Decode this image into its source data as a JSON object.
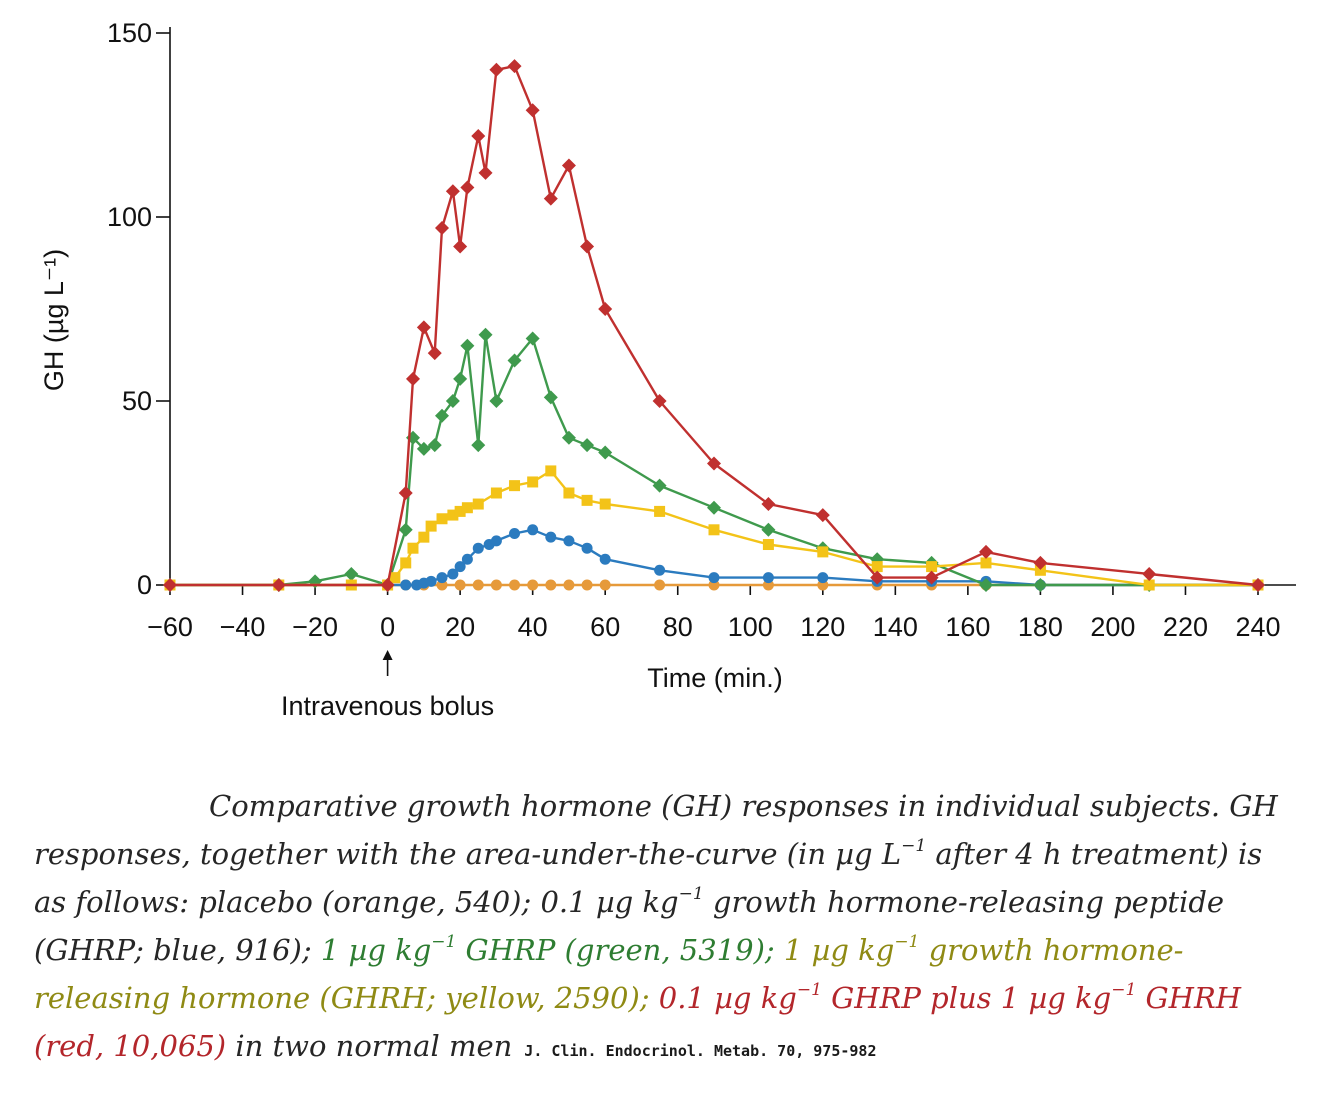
{
  "colors": {
    "red": "#c0302f",
    "green": "#3f9a4d",
    "yellow": "#f3c318",
    "blue": "#2b7bbf",
    "orange": "#e69a3a",
    "axis": "#111111"
  },
  "chart_data": {
    "type": "line",
    "title": "",
    "xlabel": "Time (min.)",
    "ylabel": "GH (µg L⁻¹)",
    "xlim": [
      -60,
      240
    ],
    "ylim": [
      0,
      150
    ],
    "x_ticks": [
      "−60",
      "−40",
      "−20",
      "0",
      "20",
      "40",
      "60",
      "80",
      "100",
      "120",
      "140",
      "160",
      "180",
      "200",
      "220",
      "240"
    ],
    "x_tick_values": [
      -60,
      -40,
      -20,
      0,
      20,
      40,
      60,
      80,
      100,
      120,
      140,
      160,
      180,
      200,
      220,
      240
    ],
    "y_ticks": [
      "0",
      "50",
      "100",
      "150"
    ],
    "y_tick_values": [
      0,
      50,
      100,
      150
    ],
    "grid": false,
    "legend": "none",
    "annotation": {
      "text": "Intravenous bolus",
      "x": 0
    },
    "series": [
      {
        "color": "orange",
        "marker": "circle",
        "x": [
          -60,
          -30,
          -10,
          0,
          5,
          10,
          15,
          20,
          25,
          30,
          35,
          40,
          45,
          50,
          55,
          60,
          75,
          90,
          105,
          120,
          135,
          150,
          165,
          180,
          210,
          240
        ],
        "y": [
          0,
          0,
          0,
          0,
          0,
          0,
          0,
          0,
          0,
          0,
          0,
          0,
          0,
          0,
          0,
          0,
          0,
          0,
          0,
          0,
          0,
          0,
          0,
          0,
          0,
          0
        ]
      },
      {
        "color": "blue",
        "marker": "circle",
        "x": [
          -60,
          -30,
          -10,
          0,
          5,
          8,
          10,
          12,
          15,
          18,
          20,
          22,
          25,
          28,
          30,
          35,
          40,
          45,
          50,
          55,
          60,
          75,
          90,
          105,
          120,
          135,
          150,
          165,
          180,
          240
        ],
        "y": [
          0,
          0,
          0,
          0,
          0,
          0,
          0.5,
          1,
          2,
          3,
          5,
          7,
          10,
          11,
          12,
          14,
          15,
          13,
          12,
          10,
          7,
          4,
          2,
          2,
          2,
          1,
          1,
          1,
          0,
          0
        ]
      },
      {
        "color": "green",
        "marker": "diamond",
        "x": [
          -60,
          -30,
          -20,
          -10,
          0,
          5,
          7,
          10,
          13,
          15,
          18,
          20,
          22,
          25,
          27,
          30,
          35,
          40,
          45,
          50,
          55,
          60,
          75,
          90,
          105,
          120,
          135,
          150,
          165,
          180,
          210,
          240
        ],
        "y": [
          0,
          0,
          1,
          3,
          0,
          15,
          40,
          37,
          38,
          46,
          50,
          56,
          65,
          38,
          68,
          50,
          61,
          67,
          51,
          40,
          38,
          36,
          27,
          21,
          15,
          10,
          7,
          6,
          0,
          0,
          0,
          0
        ]
      },
      {
        "color": "yellow",
        "marker": "square",
        "x": [
          -60,
          -30,
          -10,
          0,
          2,
          5,
          7,
          10,
          12,
          15,
          18,
          20,
          22,
          25,
          30,
          35,
          40,
          45,
          50,
          55,
          60,
          75,
          90,
          105,
          120,
          135,
          150,
          165,
          180,
          210,
          240
        ],
        "y": [
          0,
          0,
          0,
          0,
          2,
          6,
          10,
          13,
          16,
          18,
          19,
          20,
          21,
          22,
          25,
          27,
          28,
          31,
          25,
          23,
          22,
          20,
          15,
          11,
          9,
          5,
          5,
          6,
          4,
          0,
          0
        ]
      },
      {
        "color": "red",
        "marker": "diamond",
        "x": [
          -60,
          -30,
          0,
          5,
          7,
          10,
          13,
          15,
          18,
          20,
          22,
          25,
          27,
          30,
          35,
          40,
          45,
          50,
          55,
          60,
          75,
          90,
          105,
          120,
          135,
          150,
          165,
          180,
          210,
          240
        ],
        "y": [
          0,
          0,
          0,
          25,
          56,
          70,
          63,
          97,
          107,
          92,
          108,
          122,
          112,
          140,
          141,
          129,
          105,
          114,
          92,
          75,
          50,
          33,
          22,
          19,
          2,
          2,
          9,
          6,
          3,
          0
        ]
      }
    ]
  },
  "caption": {
    "p1": "Comparative growth hormone (GH) responses in individual subjects. GH responses, together with the area-under-the-curve (in µg L",
    "sup1": "−1",
    "p2": " after 4 h treatment) is as follows: placebo (orange, 540); 0.1 µg kg",
    "sup2": "−1",
    "p3": " growth hormone-releasing peptide (GHRP; blue, 916); ",
    "green_a": "1 µg kg",
    "green_sup": "−1",
    "green_b": " GHRP (green, 5319);",
    "mid": " ",
    "yellow_a": "1 µg kg",
    "yellow_sup": "−1",
    "yellow_b": " growth hormone-releasing hormone (GHRH; yellow, 2590);",
    "sep": " ",
    "red_a": "0.1 µg kg",
    "red_sup1": "−1",
    "red_b": " GHRP plus 1 µg kg",
    "red_sup2": "−1",
    "red_c": " GHRH (red, 10,065)",
    "tail": " in two normal men",
    "citation": "J. Clin. Endocrinol. Metab. 70, 975-982"
  }
}
